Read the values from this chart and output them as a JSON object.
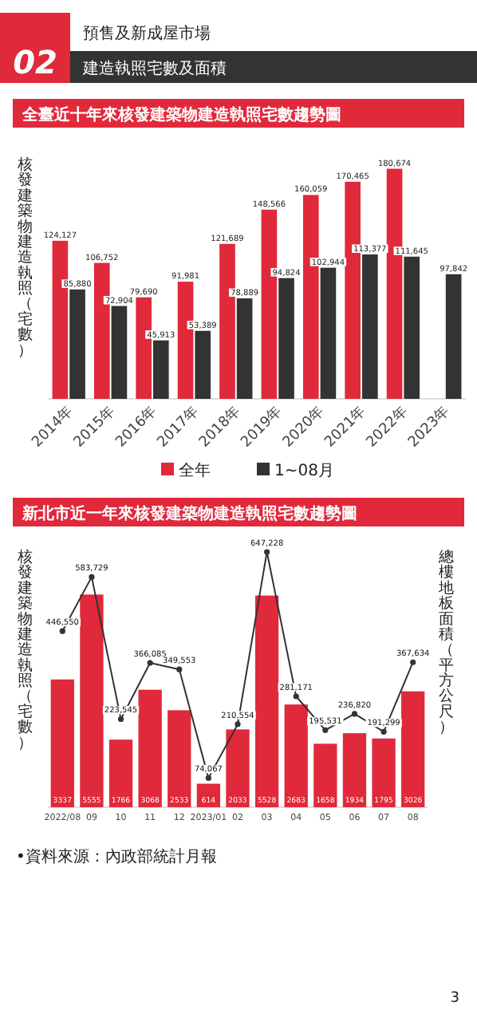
{
  "chart_data": [
    {
      "type": "bar",
      "title": "全臺近十年來核發建築物建造執照宅數趨勢圖",
      "ylabel": "核發建築物建造執照（宅數）",
      "annotations": [
        "預售及新成屋市場",
        "02",
        "建造執照宅數及面積"
      ],
      "categories": [
        "2014年",
        "2015年",
        "2016年",
        "2017年",
        "2018年",
        "2019年",
        "2020年",
        "2021年",
        "2022年",
        "2023年"
      ],
      "series": [
        {
          "name": "全年",
          "color": "#e0293a",
          "values": [
            124127,
            106752,
            79690,
            91981,
            121689,
            148566,
            160059,
            170465,
            180674,
            null
          ],
          "value_labels": [
            "124,127",
            "106,752",
            "79,690",
            "91,981",
            "121,689",
            "148,566",
            "160,059",
            "170,465",
            "180,674",
            null
          ]
        },
        {
          "name": "1~08月",
          "color": "#333333",
          "values": [
            85880,
            72904,
            45913,
            53389,
            78889,
            94824,
            102944,
            113377,
            111645,
            97842
          ],
          "value_labels": [
            "85,880",
            "72,904",
            "45,913",
            "53,389",
            "78,889",
            "94,824",
            "102,944",
            "113,377",
            "111,645",
            "97,842"
          ]
        }
      ],
      "legend": "bottom",
      "tick_labels": "x"
    },
    {
      "type": "bar",
      "title": "新北市近一年來核發建築物建造執照宅數趨勢圖",
      "ylabel": "核發建築物建造執照（宅數）",
      "y2label": "總樓地板面積（平方公尺）",
      "annotations": [
        "•資料來源：內政部統計月報",
        "3"
      ],
      "categories": [
        "2022/08",
        "09",
        "10",
        "11",
        "12",
        "2023/01",
        "02",
        "03",
        "04",
        "05",
        "06",
        "07",
        "08"
      ],
      "series": [
        {
          "type": "bar",
          "color": "#e0293a",
          "values": [
            3337,
            5555,
            1766,
            3068,
            2533,
            614,
            2033,
            5528,
            2683,
            1658,
            1934,
            1795,
            3026
          ],
          "value_labels": [
            "3337",
            "5555",
            "1766",
            "3068",
            "2533",
            "614",
            "2033",
            "5528",
            "2683",
            "1658",
            "1934",
            "1795",
            "3026"
          ]
        },
        {
          "type": "line",
          "axis": "y2",
          "color": "#333333",
          "values": [
            446550,
            583729,
            223545,
            366085,
            349553,
            74067,
            210554,
            647228,
            281171,
            195531,
            236820,
            191299,
            367634
          ],
          "value_labels": [
            "446,550",
            "583,729",
            "223,545",
            "366,085",
            "349,553",
            "74,067",
            "210,554",
            "647,228",
            "281,171",
            "195,531",
            "236,820",
            "191,299",
            "367,634"
          ]
        }
      ],
      "marker": "circle",
      "tick_labels": "x"
    }
  ]
}
